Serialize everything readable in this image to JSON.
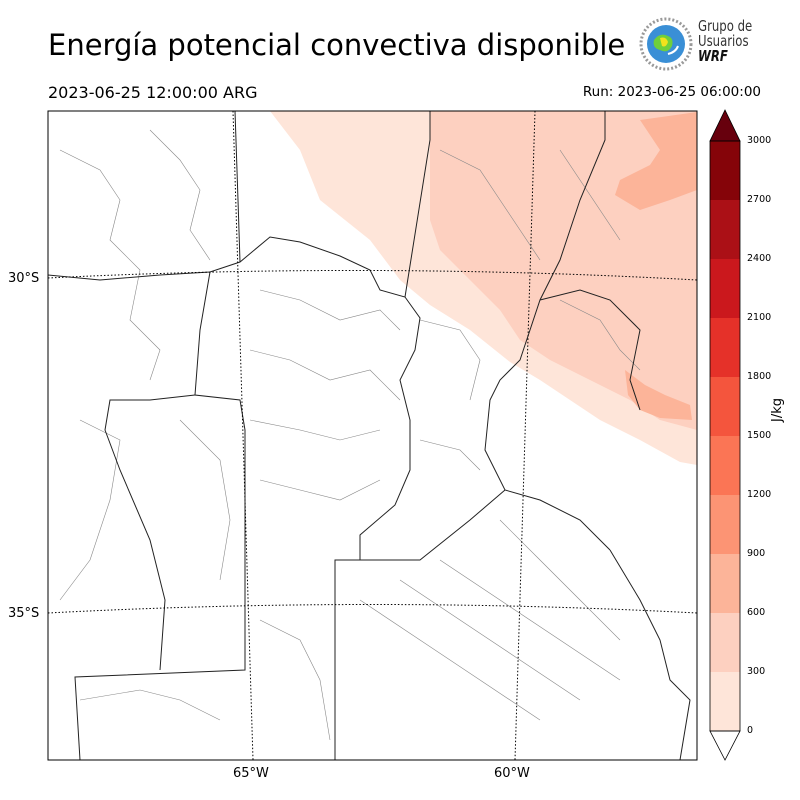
{
  "header": {
    "title": "Energía potencial convectiva disponible",
    "valid_time": "2023-06-25 12:00:00 ARG",
    "run_time": "Run: 2023-06-25 06:00:00"
  },
  "logo": {
    "line1": "Grupo de",
    "line2": "Usuarios",
    "line3": "WRF"
  },
  "map": {
    "lat_labels": [
      "30°S",
      "35°S"
    ],
    "lon_labels": [
      "65°W",
      "60°W"
    ]
  },
  "colorbar": {
    "label": "J/kg",
    "ticks": [
      "0",
      "300",
      "600",
      "900",
      "1200",
      "1500",
      "1800",
      "2100",
      "2400",
      "2700",
      "3000"
    ],
    "colors": [
      "#fee5d9",
      "#fdd0c0",
      "#fcb499",
      "#fc9474",
      "#fb7555",
      "#f4553d",
      "#e53129",
      "#cb181d",
      "#ab1016",
      "#850409"
    ],
    "extend": "both"
  }
}
